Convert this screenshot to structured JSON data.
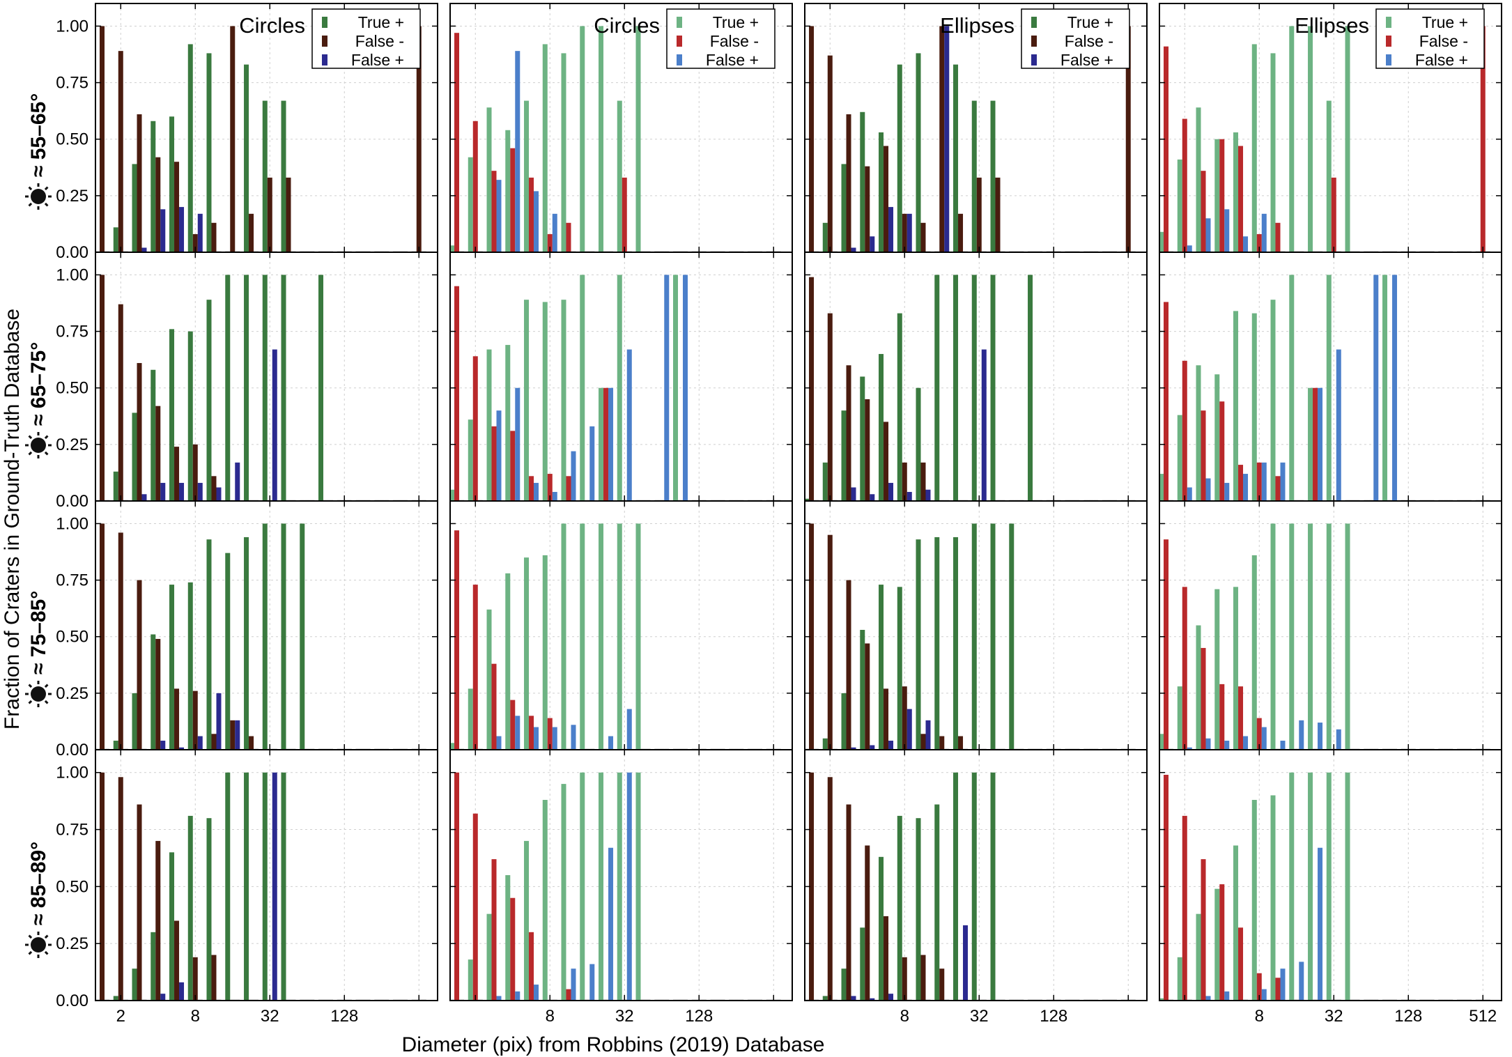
{
  "figure": {
    "xlabel": "Diameter (pix) from Robbins (2019) Database",
    "ylabel": "Fraction of Craters in Ground-Truth Database"
  },
  "colors": {
    "circles_dark": {
      "true_pos": "#3a7a3f",
      "false_neg": "#4a1c0f",
      "false_pos": "#2b2a8f"
    },
    "light": {
      "true_pos": "#6db383",
      "false_neg": "#b9292b",
      "false_pos": "#4b7fca"
    }
  },
  "chart_data": {
    "type": "bar",
    "x_scale": "log2",
    "column_titles": [
      "Circles",
      "Circles",
      "Ellipses",
      "Ellipses"
    ],
    "column_styles": [
      "dark",
      "light",
      "dark",
      "light"
    ],
    "legend": [
      "True +",
      "False -",
      "False +"
    ],
    "row_labels": [
      "≈ 55–65°",
      "≈ 65–75°",
      "≈ 75–85°",
      "≈ 85–89°"
    ],
    "row_icon": "sun-icon",
    "yticks": [
      "0.00",
      "0.25",
      "0.50",
      "0.75",
      "1.00"
    ],
    "xticks_first": [
      "2",
      "8",
      "32",
      "128"
    ],
    "xticks": [
      "8",
      "32",
      "128"
    ],
    "xticks_last": [
      "8",
      "32",
      "128",
      "512"
    ],
    "ylim": [
      0,
      1.1
    ],
    "grid": true,
    "legend_position": "top-right",
    "bins": [
      1.414,
      2,
      2.828,
      4,
      5.657,
      8,
      11.31,
      16,
      22.63,
      32,
      45.25,
      64,
      90.51,
      128,
      181,
      256,
      362,
      512
    ],
    "panels": [
      {
        "row": 0,
        "col": 0,
        "true_pos": [
          0,
          0.11,
          0.39,
          0.58,
          0.6,
          0.92,
          0.88,
          0,
          0.83,
          0.67,
          0.67,
          0,
          0,
          0,
          0,
          0,
          0,
          0
        ],
        "false_neg": [
          1.0,
          0.89,
          0.61,
          0.42,
          0.4,
          0.08,
          0.13,
          1.0,
          0.17,
          0.33,
          0.33,
          0,
          0,
          0,
          0,
          0,
          0,
          1.0
        ],
        "false_pos": [
          0,
          0,
          0.02,
          0.19,
          0.2,
          0.17,
          0,
          0,
          0,
          0,
          0,
          0,
          0,
          0,
          0,
          0,
          0,
          0
        ]
      },
      {
        "row": 0,
        "col": 1,
        "true_pos": [
          0.03,
          0.42,
          0.64,
          0.54,
          0.67,
          0.92,
          0.88,
          1.0,
          1.0,
          0.67,
          1.0,
          0,
          0,
          0,
          0,
          0,
          0,
          0
        ],
        "false_neg": [
          0.97,
          0.58,
          0.36,
          0.46,
          0.33,
          0.08,
          0.13,
          0,
          0,
          0.33,
          0,
          0,
          0,
          0,
          0,
          0,
          0,
          0
        ],
        "false_pos": [
          0,
          0,
          0.32,
          0.89,
          0.27,
          0.17,
          0,
          0,
          0,
          0,
          0,
          0,
          0,
          0,
          0,
          0,
          0,
          0
        ]
      },
      {
        "row": 0,
        "col": 2,
        "true_pos": [
          0,
          0.13,
          0.39,
          0.62,
          0.53,
          0.83,
          0.88,
          0,
          0.83,
          0.67,
          0.67,
          0,
          0,
          0,
          0,
          0,
          0,
          0
        ],
        "false_neg": [
          1.0,
          0.87,
          0.61,
          0.38,
          0.47,
          0.17,
          0.13,
          1.0,
          0.17,
          0.33,
          0.33,
          0,
          0,
          0,
          0,
          0,
          0,
          1.0
        ],
        "false_pos": [
          0,
          0,
          0.02,
          0.07,
          0.2,
          0.17,
          0,
          1.0,
          0,
          0,
          0,
          0,
          0,
          0,
          0,
          0,
          0,
          0
        ]
      },
      {
        "row": 0,
        "col": 3,
        "true_pos": [
          0.09,
          0.41,
          0.64,
          0.5,
          0.53,
          0.92,
          0.88,
          1.0,
          1.0,
          0.67,
          1.0,
          0,
          0,
          0,
          0,
          0,
          0,
          0
        ],
        "false_neg": [
          0.91,
          0.59,
          0.36,
          0.5,
          0.47,
          0.08,
          0.13,
          0,
          0,
          0.33,
          0,
          0,
          0,
          0,
          0,
          0,
          0,
          1.0
        ],
        "false_pos": [
          0,
          0.03,
          0.15,
          0.19,
          0.07,
          0.17,
          0,
          0,
          0,
          0,
          0,
          0,
          0,
          0,
          0,
          0,
          0,
          0
        ]
      },
      {
        "row": 1,
        "col": 0,
        "true_pos": [
          0,
          0.13,
          0.39,
          0.58,
          0.76,
          0.75,
          0.89,
          1.0,
          1.0,
          1.0,
          1.0,
          0,
          1.0,
          0,
          0,
          0,
          0,
          0
        ],
        "false_neg": [
          1.0,
          0.87,
          0.61,
          0.42,
          0.24,
          0.25,
          0.11,
          0,
          0,
          0,
          0,
          0,
          0,
          0,
          0,
          0,
          0,
          0
        ],
        "false_pos": [
          0,
          0,
          0.03,
          0.08,
          0.08,
          0.08,
          0.06,
          0.17,
          0,
          0.67,
          0,
          0,
          0,
          0,
          0,
          0,
          0,
          0
        ]
      },
      {
        "row": 1,
        "col": 1,
        "true_pos": [
          0.05,
          0.36,
          0.67,
          0.69,
          0.89,
          0.88,
          0.89,
          1.0,
          0.5,
          1.0,
          0,
          0,
          1.0,
          0,
          0,
          0,
          0,
          0
        ],
        "false_neg": [
          0.95,
          0.64,
          0.33,
          0.31,
          0.11,
          0.12,
          0.11,
          0,
          0.5,
          0,
          0,
          0,
          0,
          0,
          0,
          0,
          0,
          0
        ],
        "false_pos": [
          0,
          0,
          0.4,
          0.5,
          0.08,
          0.04,
          0.22,
          0.33,
          0.5,
          0.67,
          0,
          1.0,
          1.0,
          0,
          0,
          0,
          0,
          0
        ]
      },
      {
        "row": 1,
        "col": 2,
        "true_pos": [
          0.01,
          0.17,
          0.4,
          0.55,
          0.65,
          0.83,
          0.5,
          1.0,
          1.0,
          1.0,
          1.0,
          0,
          1.0,
          0,
          0,
          0,
          0,
          0
        ],
        "false_neg": [
          0.99,
          0.83,
          0.6,
          0.45,
          0.35,
          0.17,
          0.17,
          0,
          0,
          0,
          0,
          0,
          0,
          0,
          0,
          0,
          0,
          0
        ],
        "false_pos": [
          0,
          0,
          0.06,
          0.03,
          0.08,
          0.04,
          0.05,
          0,
          0,
          0.67,
          0,
          0,
          0,
          0,
          0,
          0,
          0,
          0
        ]
      },
      {
        "row": 1,
        "col": 3,
        "true_pos": [
          0.12,
          0.38,
          0.6,
          0.56,
          0.84,
          0.83,
          0.89,
          1.0,
          0.5,
          1.0,
          0,
          0,
          1.0,
          0,
          0,
          0,
          0,
          0
        ],
        "false_neg": [
          0.88,
          0.62,
          0.4,
          0.44,
          0.16,
          0.17,
          0.11,
          0,
          0.5,
          0,
          0,
          0,
          0,
          0,
          0,
          0,
          0,
          0
        ],
        "false_pos": [
          0,
          0.06,
          0.1,
          0.08,
          0.12,
          0.17,
          0.17,
          0,
          0.5,
          0.67,
          0,
          1.0,
          1.0,
          0,
          0,
          0,
          0,
          0
        ]
      },
      {
        "row": 2,
        "col": 0,
        "true_pos": [
          0,
          0.04,
          0.25,
          0.51,
          0.73,
          0.74,
          0.93,
          0.87,
          0.94,
          1.0,
          1.0,
          1.0,
          0,
          0,
          0,
          0,
          0,
          0
        ],
        "false_neg": [
          1.0,
          0.96,
          0.75,
          0.49,
          0.27,
          0.26,
          0.07,
          0.13,
          0.06,
          0,
          0,
          0,
          0,
          0,
          0,
          0,
          0,
          0
        ],
        "false_pos": [
          0,
          0,
          0,
          0.04,
          0.01,
          0.06,
          0.25,
          0.13,
          0,
          0,
          0,
          0,
          0,
          0,
          0,
          0,
          0,
          0
        ]
      },
      {
        "row": 2,
        "col": 1,
        "true_pos": [
          0.03,
          0.27,
          0.62,
          0.78,
          0.85,
          0.86,
          1.0,
          1.0,
          1.0,
          1.0,
          1.0,
          0,
          0,
          0,
          0,
          0,
          0,
          0
        ],
        "false_neg": [
          0.97,
          0.73,
          0.38,
          0.22,
          0.15,
          0.14,
          0,
          0,
          0,
          0,
          0,
          0,
          0,
          0,
          0,
          0,
          0,
          0
        ],
        "false_pos": [
          0,
          0,
          0.06,
          0.15,
          0.1,
          0.1,
          0.11,
          0,
          0.06,
          0.18,
          0,
          0,
          0,
          0,
          0,
          0,
          0,
          0
        ]
      },
      {
        "row": 2,
        "col": 2,
        "true_pos": [
          0,
          0.05,
          0.25,
          0.53,
          0.73,
          0.72,
          0.93,
          0.94,
          0.94,
          1.0,
          1.0,
          1.0,
          0,
          0,
          0,
          0,
          0,
          0
        ],
        "false_neg": [
          1.0,
          0.95,
          0.75,
          0.47,
          0.27,
          0.28,
          0.07,
          0.06,
          0.06,
          0,
          0,
          0,
          0,
          0,
          0,
          0,
          0,
          0
        ],
        "false_pos": [
          0,
          0,
          0.01,
          0.02,
          0.04,
          0.18,
          0.13,
          0,
          0,
          0,
          0,
          0,
          0,
          0,
          0,
          0,
          0,
          0
        ]
      },
      {
        "row": 2,
        "col": 3,
        "true_pos": [
          0.07,
          0.28,
          0.55,
          0.71,
          0.72,
          0.86,
          1.0,
          1.0,
          1.0,
          1.0,
          1.0,
          0,
          0,
          0,
          0,
          0,
          0,
          0
        ],
        "false_neg": [
          0.93,
          0.72,
          0.45,
          0.29,
          0.28,
          0.14,
          0,
          0,
          0,
          0,
          0,
          0,
          0,
          0,
          0,
          0,
          0,
          0
        ],
        "false_pos": [
          0,
          0.01,
          0.05,
          0.04,
          0.06,
          0.1,
          0.04,
          0.13,
          0.12,
          0.09,
          0,
          0,
          0,
          0,
          0,
          0,
          0,
          0
        ]
      },
      {
        "row": 3,
        "col": 0,
        "true_pos": [
          0,
          0.02,
          0.14,
          0.3,
          0.65,
          0.81,
          0.8,
          1.0,
          1.0,
          1.0,
          1.0,
          0,
          0,
          0,
          0,
          0,
          0,
          0
        ],
        "false_neg": [
          1.0,
          0.98,
          0.86,
          0.7,
          0.35,
          0.19,
          0.2,
          0,
          0,
          0,
          0,
          0,
          0,
          0,
          0,
          0,
          0,
          0
        ],
        "false_pos": [
          0,
          0,
          0,
          0.03,
          0.08,
          0,
          0,
          0,
          0,
          1.0,
          0,
          0,
          0,
          0,
          0,
          0,
          0,
          0
        ]
      },
      {
        "row": 3,
        "col": 1,
        "true_pos": [
          0,
          0.18,
          0.38,
          0.55,
          0.7,
          0.88,
          0.95,
          1.0,
          1.0,
          1.0,
          1.0,
          0,
          0,
          0,
          0,
          0,
          0,
          0
        ],
        "false_neg": [
          1.0,
          0.82,
          0.62,
          0.45,
          0.3,
          0,
          0.05,
          0,
          0,
          0,
          0,
          0,
          0,
          0,
          0,
          0,
          0,
          0
        ],
        "false_pos": [
          0,
          0,
          0.02,
          0.04,
          0.07,
          0,
          0.14,
          0.16,
          0.67,
          1.0,
          0,
          0,
          0,
          0,
          0,
          0,
          0,
          0
        ]
      },
      {
        "row": 3,
        "col": 2,
        "true_pos": [
          0,
          0.02,
          0.14,
          0.32,
          0.63,
          0.81,
          0.8,
          0.86,
          1.0,
          1.0,
          1.0,
          0,
          0,
          0,
          0,
          0,
          0,
          0
        ],
        "false_neg": [
          1.0,
          0.98,
          0.86,
          0.68,
          0.37,
          0.19,
          0.2,
          0.14,
          0,
          0,
          0,
          0,
          0,
          0,
          0,
          0,
          0,
          0
        ],
        "false_pos": [
          0,
          0,
          0.02,
          0.01,
          0.03,
          0,
          0,
          0,
          0.33,
          0,
          0,
          0,
          0,
          0,
          0,
          0,
          0,
          0
        ]
      },
      {
        "row": 3,
        "col": 3,
        "true_pos": [
          0.01,
          0.19,
          0.38,
          0.49,
          0.68,
          0.88,
          0.9,
          1.0,
          1.0,
          1.0,
          1.0,
          0,
          0,
          0,
          0,
          0,
          0,
          0
        ],
        "false_neg": [
          0.99,
          0.81,
          0.62,
          0.51,
          0.32,
          0.12,
          0.1,
          0,
          0,
          0,
          0,
          0,
          0,
          0,
          0,
          0,
          0,
          0
        ],
        "false_pos": [
          0,
          0,
          0.02,
          0.04,
          0,
          0.05,
          0.14,
          0.17,
          0.67,
          0,
          0,
          0,
          0,
          0,
          0,
          0,
          0,
          0
        ]
      }
    ]
  }
}
